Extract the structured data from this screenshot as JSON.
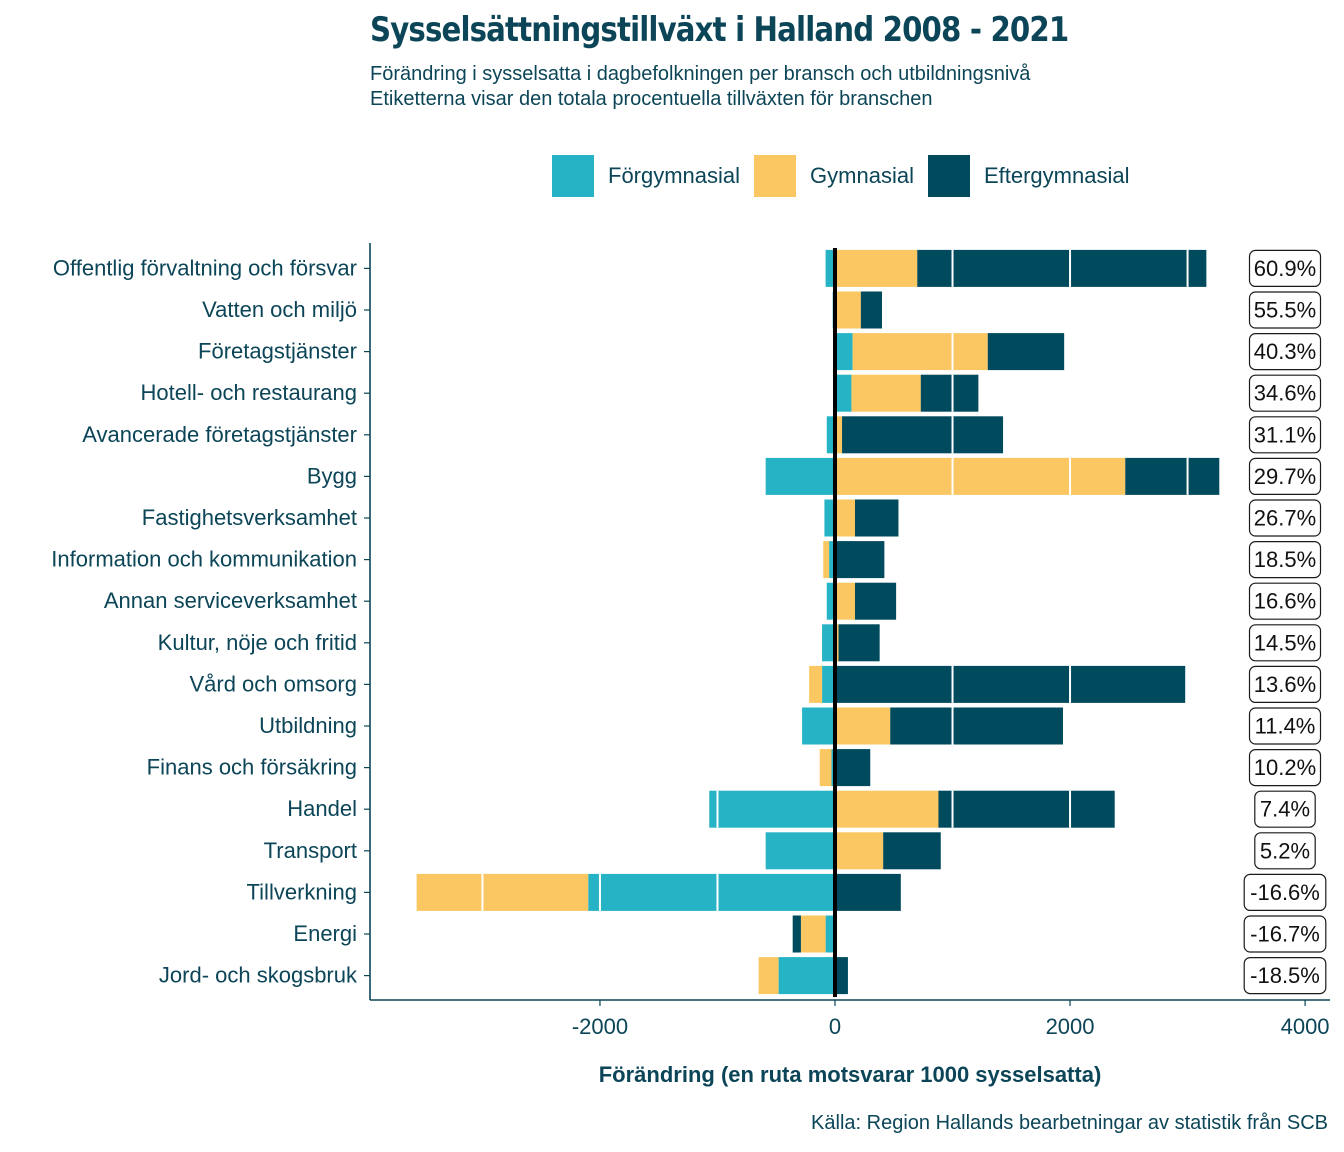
{
  "title": "Sysselsättningstillväxt i Halland 2008 - 2021",
  "subtitle": [
    "Förändring i sysselsatta i dagbefolkningen per bransch och utbildningsnivå",
    "Etiketterna visar den totala procentuella tillväxten för branschen"
  ],
  "caption": "Källa: Region Hallands bearbetningar av statistik från SCB",
  "legend": [
    {
      "name": "Förgymnasial",
      "color": "#27b3c6"
    },
    {
      "name": "Gymnasial",
      "color": "#fbc762"
    },
    {
      "name": "Eftergymnasial",
      "color": "#004a5e"
    }
  ],
  "chart_data": {
    "type": "bar",
    "orientation": "horizontal",
    "stacked": true,
    "xlabel": "Förändring (en ruta motsvarar 1000 sysselsatta)",
    "xlim": [
      -3950,
      4150
    ],
    "xticks": [
      -2000,
      0,
      2000,
      4000
    ],
    "xtick_labels": [
      "-2000",
      "0",
      "2000",
      "4000"
    ],
    "categories": [
      "Offentlig förvaltning och försvar",
      "Vatten och miljö",
      "Företagstjänster",
      "Hotell- och restaurang",
      "Avancerade företagstjänster",
      "Bygg",
      "Fastighetsverksamhet",
      "Information och kommunikation",
      "Annan serviceverksamhet",
      "Kultur, nöje och fritid",
      "Vård och omsorg",
      "Utbildning",
      "Finans och försäkring",
      "Handel",
      "Transport",
      "Tillverkning",
      "Energi",
      "Jord- och skogsbruk"
    ],
    "series": [
      {
        "name": "Förgymnasial",
        "color": "#27b3c6",
        "values": [
          -80,
          -20,
          150,
          140,
          -70,
          -590,
          -90,
          -50,
          -70,
          -110,
          -110,
          -280,
          -30,
          -1070,
          -590,
          -2100,
          -80,
          -480
        ]
      },
      {
        "name": "Gymnasial",
        "color": "#fbc762",
        "values": [
          700,
          220,
          1150,
          590,
          60,
          2470,
          170,
          -50,
          170,
          30,
          -110,
          470,
          -100,
          880,
          410,
          -1460,
          -210,
          -170
        ]
      },
      {
        "name": "Eftergymnasial",
        "color": "#004a5e",
        "values": [
          2460,
          180,
          650,
          490,
          1370,
          800,
          370,
          420,
          350,
          350,
          2980,
          1470,
          300,
          1500,
          490,
          560,
          -70,
          110
        ]
      }
    ],
    "total_growth_labels": [
      "60.9%",
      "55.5%",
      "40.3%",
      "34.6%",
      "31.1%",
      "29.7%",
      "26.7%",
      "18.5%",
      "16.6%",
      "14.5%",
      "13.6%",
      "11.4%",
      "10.2%",
      "7.4%",
      "5.2%",
      "-16.6%",
      "-16.7%",
      "-18.5%"
    ],
    "box_unit": 1000,
    "grid": false,
    "legend_position": "top"
  }
}
